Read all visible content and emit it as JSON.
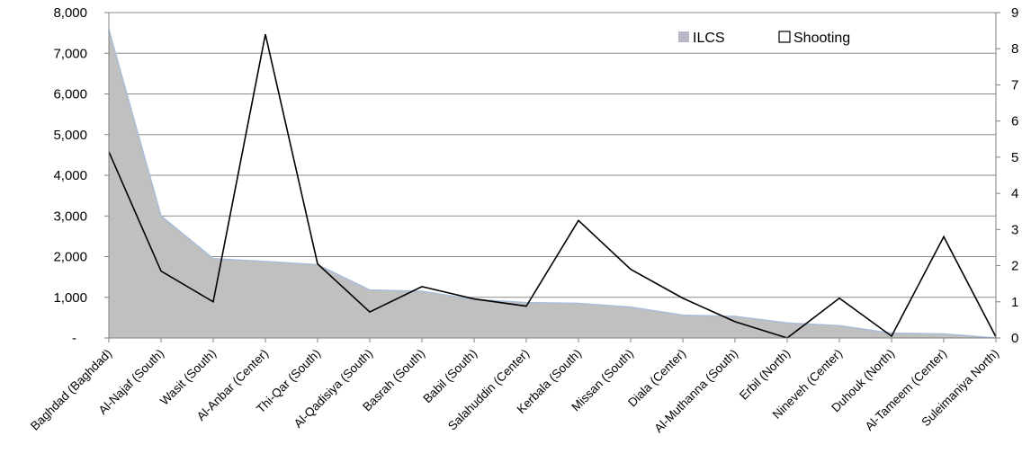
{
  "chart_data": {
    "type": "area",
    "categories": [
      "Baghdad (Baghdad)",
      "Al-Najaf (South)",
      "Wasit (South)",
      "Al-Anbar (Center)",
      "Thi-Qar (South)",
      "Al-Qadisiya (South)",
      "Basrah (South)",
      "Babil (South)",
      "Salahuddin (Center)",
      "Kerbala (South)",
      "Missan (South)",
      "Diala (Center)",
      "Al-Muthanna (South)",
      "Erbil (North)",
      "Nineveh (Center)",
      "Duhouk (North)",
      "Al-Tameem (Center)",
      "Suleimaniya North)"
    ],
    "series": [
      {
        "name": "ILCS",
        "type": "area",
        "axis": "left",
        "color": "#c0c0c0",
        "edge_color": "#a9bcd9",
        "values": [
          7580,
          3000,
          1950,
          1880,
          1800,
          1180,
          1150,
          950,
          870,
          850,
          760,
          560,
          530,
          370,
          300,
          120,
          100,
          0
        ]
      },
      {
        "name": "Shooting",
        "type": "line",
        "axis": "right",
        "color": "#000000",
        "values": [
          5.15,
          1.85,
          1.0,
          8.4,
          2.05,
          0.72,
          1.42,
          1.08,
          0.88,
          3.25,
          1.9,
          1.1,
          0.45,
          0.0,
          1.1,
          0.05,
          2.8,
          0.03
        ]
      }
    ],
    "y_left": {
      "ylim": [
        0,
        8000
      ],
      "ticks": [
        0,
        1000,
        2000,
        3000,
        4000,
        5000,
        6000,
        7000,
        8000
      ],
      "tick_labels": [
        "-",
        "1,000",
        "2,000",
        "3,000",
        "4,000",
        "5,000",
        "6,000",
        "7,000",
        "8,000"
      ]
    },
    "y_right": {
      "ylim": [
        0,
        9
      ],
      "ticks": [
        0,
        1,
        2,
        3,
        4,
        5,
        6,
        7,
        8,
        9
      ],
      "tick_labels": [
        "0",
        "1",
        "2",
        "3",
        "4",
        "5",
        "6",
        "7",
        "8",
        "9"
      ]
    },
    "title": "",
    "grid": true,
    "legend_position": "top-right",
    "legend": [
      {
        "label": "ILCS",
        "swatch": "filled",
        "color": "#b8b8c8"
      },
      {
        "label": "Shooting",
        "swatch": "outline",
        "color": "#000000"
      }
    ]
  }
}
